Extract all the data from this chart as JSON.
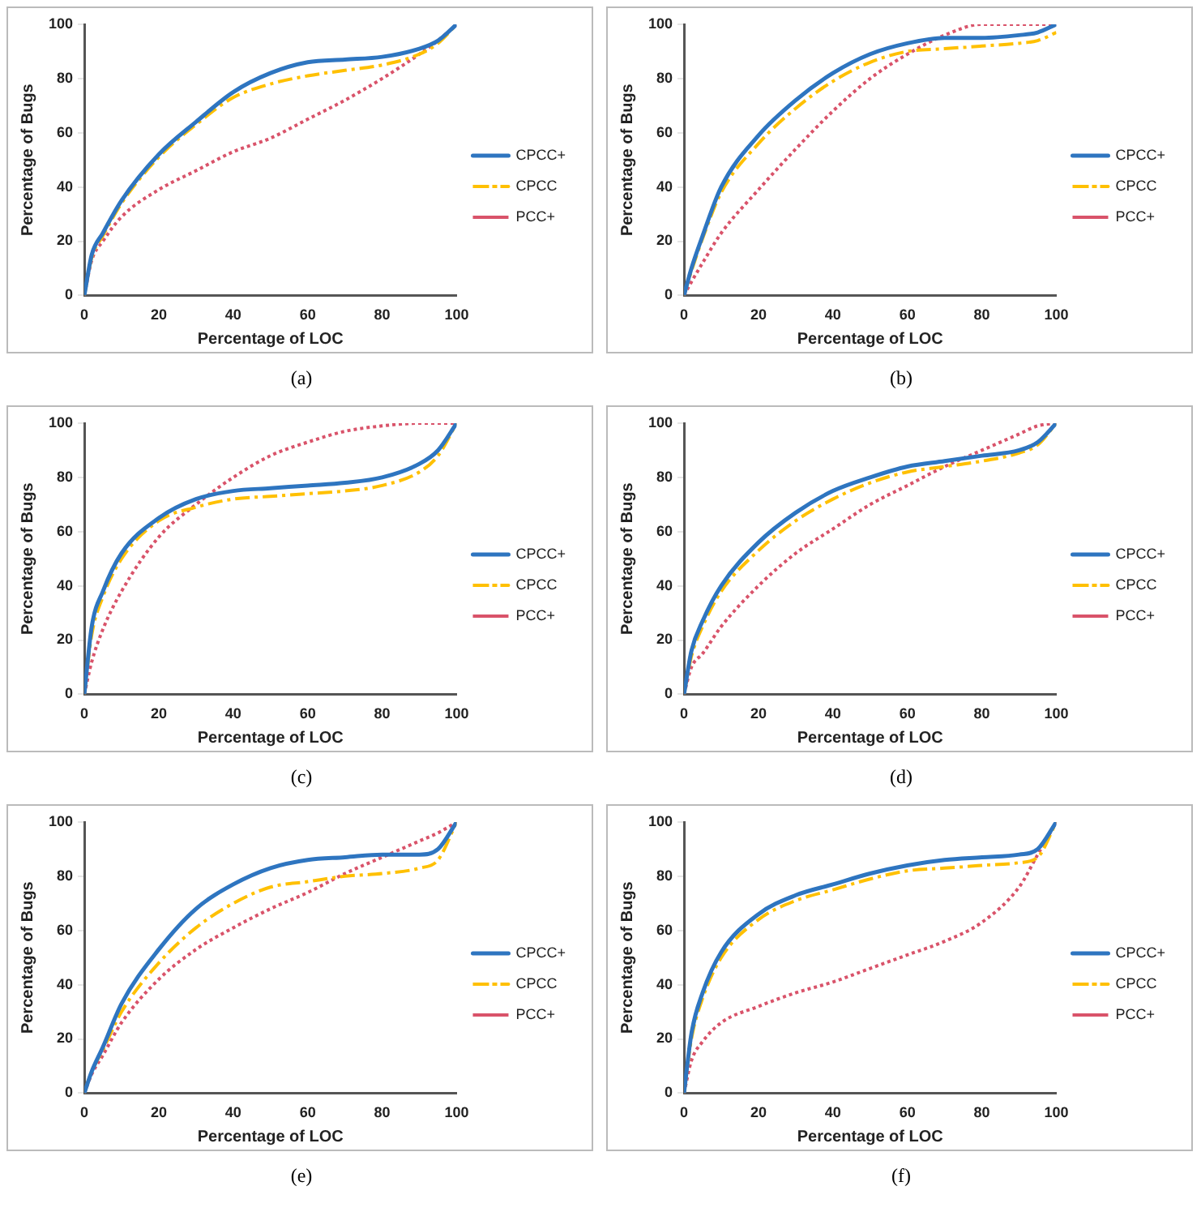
{
  "chart_data": [
    {
      "type": "line",
      "xlabel": "Percentage of LOC",
      "ylabel": "Percentage of Bugs",
      "annotations": [
        "(a)"
      ],
      "x": [
        0,
        2,
        5,
        10,
        20,
        30,
        40,
        50,
        60,
        70,
        80,
        90,
        95,
        100
      ],
      "xlim": [
        0,
        100
      ],
      "xticks": [
        0,
        20,
        40,
        60,
        80,
        100
      ],
      "ylim": [
        0,
        100
      ],
      "yticks": [
        0,
        20,
        40,
        60,
        80,
        100
      ],
      "legend": "right",
      "marker": "none",
      "series": [
        {
          "name": "CPCC+",
          "color": "#2e75c0",
          "line_style": "solid",
          "values": [
            0,
            15,
            23,
            35,
            52,
            64,
            75,
            82,
            86,
            87,
            88,
            91,
            94,
            100
          ]
        },
        {
          "name": "CPCC",
          "color": "#ffc000",
          "line_style": "dashed",
          "values": [
            0,
            14,
            22,
            34,
            51,
            63,
            73,
            78,
            81,
            83,
            85,
            89,
            93,
            100
          ]
        },
        {
          "name": "PCC+",
          "color": "#d9536a",
          "line_style": "dotted",
          "values": [
            0,
            13,
            20,
            29,
            39,
            46,
            53,
            58,
            65,
            72,
            80,
            89,
            94,
            100
          ]
        }
      ]
    },
    {
      "type": "line",
      "xlabel": "Percentage of LOC",
      "ylabel": "Percentage of Bugs",
      "annotations": [
        "(b)"
      ],
      "x": [
        0,
        2,
        5,
        10,
        20,
        30,
        40,
        50,
        60,
        70,
        80,
        90,
        95,
        100
      ],
      "xlim": [
        0,
        100
      ],
      "xticks": [
        0,
        20,
        40,
        60,
        80,
        100
      ],
      "ylim": [
        0,
        100
      ],
      "yticks": [
        0,
        20,
        40,
        60,
        80,
        100
      ],
      "legend": "right",
      "marker": "none",
      "series": [
        {
          "name": "CPCC+",
          "color": "#2e75c0",
          "line_style": "solid",
          "values": [
            0,
            10,
            22,
            40,
            59,
            72,
            82,
            89,
            93,
            95,
            95,
            96,
            97,
            100
          ]
        },
        {
          "name": "CPCC",
          "color": "#ffc000",
          "line_style": "dashed",
          "values": [
            0,
            9,
            21,
            38,
            56,
            69,
            79,
            86,
            90,
            91,
            92,
            93,
            94,
            97
          ]
        },
        {
          "name": "PCC+",
          "color": "#d9536a",
          "line_style": "dotted",
          "values": [
            0,
            5,
            12,
            23,
            39,
            54,
            68,
            80,
            89,
            96,
            100,
            100,
            100,
            100
          ]
        }
      ]
    },
    {
      "type": "line",
      "xlabel": "Percentage of LOC",
      "ylabel": "Percentage of Bugs",
      "annotations": [
        "(c)"
      ],
      "x": [
        0,
        2,
        5,
        10,
        20,
        30,
        40,
        50,
        60,
        70,
        80,
        90,
        95,
        100
      ],
      "xlim": [
        0,
        100
      ],
      "xticks": [
        0,
        20,
        40,
        60,
        80,
        100
      ],
      "ylim": [
        0,
        100
      ],
      "yticks": [
        0,
        20,
        40,
        60,
        80,
        100
      ],
      "legend": "right",
      "marker": "none",
      "series": [
        {
          "name": "CPCC+",
          "color": "#2e75c0",
          "line_style": "solid",
          "values": [
            0,
            25,
            38,
            52,
            65,
            72,
            75,
            76,
            77,
            78,
            80,
            85,
            90,
            100
          ]
        },
        {
          "name": "CPCC",
          "color": "#ffc000",
          "line_style": "dashed",
          "values": [
            0,
            22,
            36,
            50,
            64,
            69,
            72,
            73,
            74,
            75,
            77,
            82,
            88,
            100
          ]
        },
        {
          "name": "PCC+",
          "color": "#d9536a",
          "line_style": "dotted",
          "values": [
            0,
            12,
            24,
            38,
            58,
            70,
            80,
            88,
            93,
            97,
            99,
            100,
            100,
            100
          ]
        }
      ]
    },
    {
      "type": "line",
      "xlabel": "Percentage of LOC",
      "ylabel": "Percentage of Bugs",
      "annotations": [
        "(d)"
      ],
      "x": [
        0,
        2,
        5,
        10,
        20,
        30,
        40,
        50,
        60,
        70,
        80,
        90,
        95,
        100
      ],
      "xlim": [
        0,
        100
      ],
      "xticks": [
        0,
        20,
        40,
        60,
        80,
        100
      ],
      "ylim": [
        0,
        100
      ],
      "yticks": [
        0,
        20,
        40,
        60,
        80,
        100
      ],
      "legend": "right",
      "marker": "none",
      "series": [
        {
          "name": "CPCC+",
          "color": "#2e75c0",
          "line_style": "solid",
          "values": [
            0,
            16,
            27,
            40,
            56,
            67,
            75,
            80,
            84,
            86,
            88,
            90,
            93,
            100
          ]
        },
        {
          "name": "CPCC",
          "color": "#ffc000",
          "line_style": "dashed",
          "values": [
            0,
            14,
            25,
            38,
            53,
            64,
            72,
            78,
            82,
            84,
            86,
            89,
            92,
            100
          ]
        },
        {
          "name": "PCC+",
          "color": "#d9536a",
          "line_style": "dotted",
          "values": [
            0,
            10,
            15,
            25,
            40,
            52,
            61,
            70,
            77,
            84,
            90,
            96,
            99,
            100
          ]
        }
      ]
    },
    {
      "type": "line",
      "xlabel": "Percentage of LOC",
      "ylabel": "Percentage of Bugs",
      "annotations": [
        "(e)"
      ],
      "x": [
        0,
        2,
        5,
        10,
        20,
        30,
        40,
        50,
        60,
        70,
        80,
        90,
        95,
        100
      ],
      "xlim": [
        0,
        100
      ],
      "xticks": [
        0,
        20,
        40,
        60,
        80,
        100
      ],
      "ylim": [
        0,
        100
      ],
      "yticks": [
        0,
        20,
        40,
        60,
        80,
        100
      ],
      "legend": "right",
      "marker": "none",
      "series": [
        {
          "name": "CPCC+",
          "color": "#2e75c0",
          "line_style": "solid",
          "values": [
            0,
            8,
            17,
            33,
            53,
            68,
            77,
            83,
            86,
            87,
            88,
            88,
            90,
            100
          ]
        },
        {
          "name": "CPCC",
          "color": "#ffc000",
          "line_style": "dashed",
          "values": [
            0,
            8,
            16,
            30,
            48,
            61,
            70,
            76,
            78,
            80,
            81,
            83,
            86,
            100
          ]
        },
        {
          "name": "PCC+",
          "color": "#d9536a",
          "line_style": "dotted",
          "values": [
            0,
            7,
            14,
            26,
            42,
            53,
            61,
            68,
            74,
            81,
            87,
            93,
            96,
            100
          ]
        }
      ]
    },
    {
      "type": "line",
      "xlabel": "Percentage of LOC",
      "ylabel": "Percentage of Bugs",
      "annotations": [
        "(f)"
      ],
      "x": [
        0,
        2,
        5,
        10,
        20,
        30,
        40,
        50,
        60,
        70,
        80,
        90,
        95,
        100
      ],
      "xlim": [
        0,
        100
      ],
      "xticks": [
        0,
        20,
        40,
        60,
        80,
        100
      ],
      "ylim": [
        0,
        100
      ],
      "yticks": [
        0,
        20,
        40,
        60,
        80,
        100
      ],
      "legend": "right",
      "marker": "none",
      "series": [
        {
          "name": "CPCC+",
          "color": "#2e75c0",
          "line_style": "solid",
          "values": [
            0,
            22,
            37,
            52,
            66,
            73,
            77,
            81,
            84,
            86,
            87,
            88,
            90,
            100
          ]
        },
        {
          "name": "CPCC",
          "color": "#ffc000",
          "line_style": "dashed",
          "values": [
            0,
            20,
            35,
            50,
            64,
            71,
            75,
            79,
            82,
            83,
            84,
            85,
            87,
            100
          ]
        },
        {
          "name": "PCC+",
          "color": "#d9536a",
          "line_style": "dotted",
          "values": [
            0,
            12,
            19,
            26,
            32,
            37,
            41,
            46,
            51,
            56,
            63,
            76,
            88,
            100
          ]
        }
      ]
    }
  ]
}
